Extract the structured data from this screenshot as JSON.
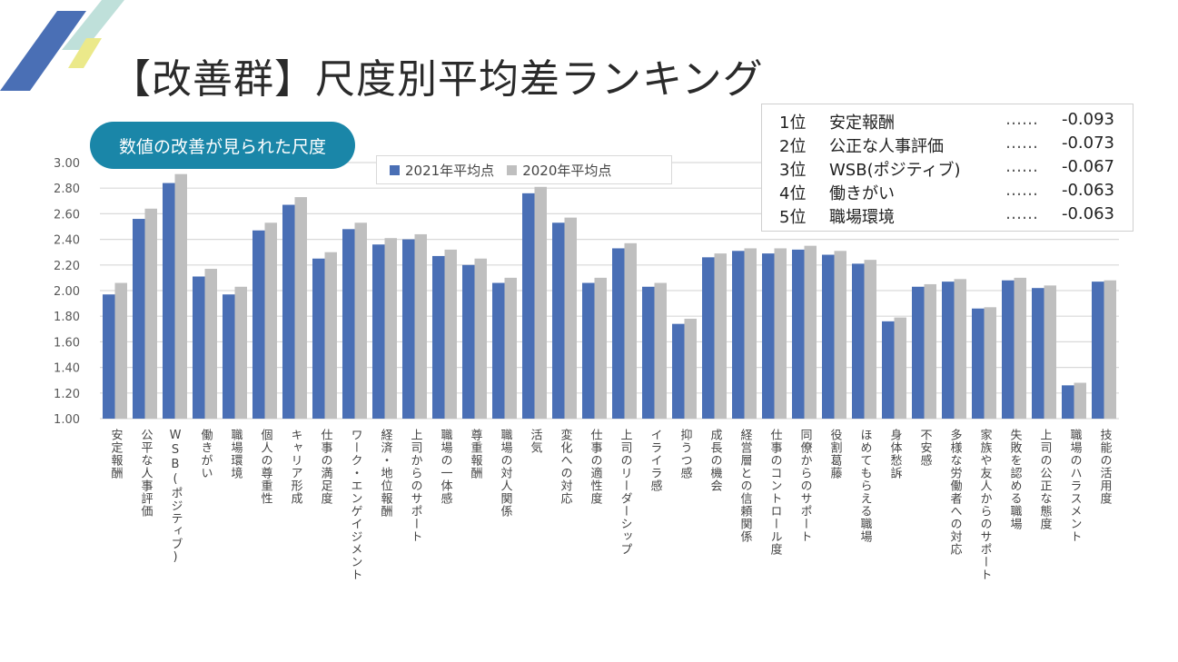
{
  "slide": {
    "title": "【改善群】尺度別平均差ランキング",
    "subtitle": "数値の改善が見られた尺度"
  },
  "colors": {
    "series_2021": "#4a6fb5",
    "series_2020": "#bfbfbf",
    "pill": "#1a86a8",
    "deco_blue": "#4a6fb5",
    "deco_teal": "#bfe0da",
    "deco_yellow": "#ebe98a",
    "gridline": "#d9d9d9"
  },
  "ranking": [
    {
      "pos": "1位",
      "name": "安定報酬",
      "dots": "……",
      "value": "-0.093"
    },
    {
      "pos": "2位",
      "name": "公正な人事評価",
      "dots": "……",
      "value": "-0.073"
    },
    {
      "pos": "3位",
      "name": "WSB(ポジティブ)",
      "dots": "……",
      "value": "-0.067"
    },
    {
      "pos": "4位",
      "name": "働きがい",
      "dots": "……",
      "value": "-0.063"
    },
    {
      "pos": "5位",
      "name": "職場環境",
      "dots": "……",
      "value": "-0.063"
    }
  ],
  "chart_data": {
    "type": "bar",
    "title": "",
    "xlabel": "",
    "ylabel": "",
    "ylim": [
      1.0,
      3.0
    ],
    "yticks": [
      "1.00",
      "1.20",
      "1.40",
      "1.60",
      "1.80",
      "2.00",
      "2.20",
      "2.40",
      "2.60",
      "2.80",
      "3.00"
    ],
    "grid": true,
    "legend_position": "top-center",
    "categories": [
      "安定報酬",
      "公平な人事評価",
      "WSB(ポジティブ)",
      "働きがい",
      "職場環境",
      "個人の尊重性",
      "キャリア形成",
      "仕事の満足度",
      "ワーク・エンゲイジメント",
      "経済・地位報酬",
      "上司からのサポート",
      "職場の一体感",
      "尊重報酬",
      "職場の対人関係",
      "活気",
      "変化への対応",
      "仕事の適性度",
      "上司のリーダーシップ",
      "イライラ感",
      "抑うつ感",
      "成長の機会",
      "経営層との信頼関係",
      "仕事のコントロール度",
      "同僚からのサポート",
      "役割葛藤",
      "ほめてもらえる職場",
      "身体愁訴",
      "不安感",
      "多様な労働者への対応",
      "家族や友人からのサポート",
      "失敗を認める職場",
      "上司の公正な態度",
      "職場のハラスメント",
      "技能の活用度"
    ],
    "series": [
      {
        "name": "2021年平均点",
        "values": [
          1.97,
          2.56,
          2.84,
          2.11,
          1.97,
          2.47,
          2.67,
          2.25,
          2.48,
          2.36,
          2.4,
          2.27,
          2.2,
          2.06,
          2.76,
          2.53,
          2.06,
          2.33,
          2.03,
          1.74,
          2.26,
          2.31,
          2.29,
          2.32,
          2.28,
          2.21,
          1.76,
          2.03,
          2.07,
          1.86,
          2.08,
          2.02,
          1.26,
          2.07
        ]
      },
      {
        "name": "2020年平均点",
        "values": [
          2.06,
          2.64,
          2.91,
          2.17,
          2.03,
          2.53,
          2.73,
          2.3,
          2.53,
          2.41,
          2.44,
          2.32,
          2.25,
          2.1,
          2.81,
          2.57,
          2.1,
          2.37,
          2.06,
          1.78,
          2.29,
          2.33,
          2.33,
          2.35,
          2.31,
          2.24,
          1.79,
          2.05,
          2.09,
          1.87,
          2.1,
          2.04,
          1.28,
          2.08
        ]
      }
    ]
  }
}
